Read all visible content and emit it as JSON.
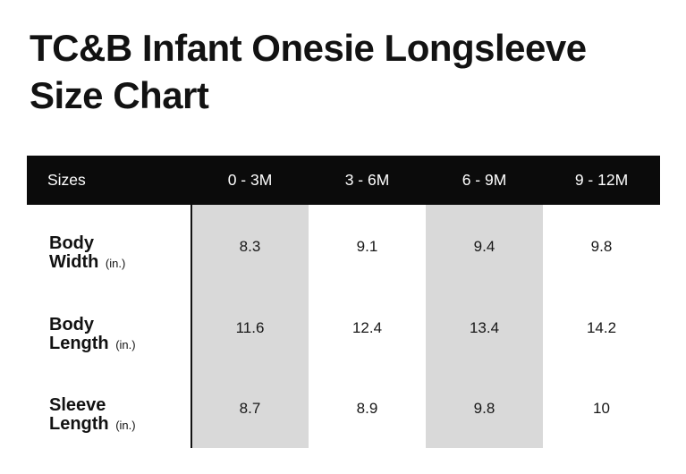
{
  "title": "TC&B Infant Onesie Longsleeve Size Chart",
  "table": {
    "header": {
      "label": "Sizes",
      "columns": [
        "0 - 3M",
        "3 - 6M",
        "6 - 9M",
        "9 - 12M"
      ]
    },
    "rows": [
      {
        "label_line1": "Body",
        "label_line2": "Width",
        "unit": "(in.)",
        "values": [
          "8.3",
          "9.1",
          "9.4",
          "9.8"
        ]
      },
      {
        "label_line1": "Body",
        "label_line2": "Length",
        "unit": "(in.)",
        "values": [
          "11.6",
          "12.4",
          "13.4",
          "14.2"
        ]
      },
      {
        "label_line1": "Sleeve",
        "label_line2": "Length",
        "unit": "(in.)",
        "values": [
          "8.7",
          "8.9",
          "9.8",
          "10"
        ]
      }
    ],
    "highlighted_columns": [
      "0 - 3M",
      "6 - 9M"
    ]
  },
  "colors": {
    "header_bg": "#0b0b0b",
    "header_text": "#ffffff",
    "highlight_column_bg": "#d9d9d9",
    "divider_line": "#131313",
    "text": "#121212",
    "background": "#ffffff"
  },
  "chart_data": {
    "type": "table",
    "title": "TC&B Infant Onesie Longsleeve Size Chart",
    "columns": [
      "Sizes",
      "0 - 3M",
      "3 - 6M",
      "6 - 9M",
      "9 - 12M"
    ],
    "rows": [
      [
        "Body Width (in.)",
        8.3,
        9.1,
        9.4,
        9.8
      ],
      [
        "Body Length (in.)",
        11.6,
        12.4,
        13.4,
        14.2
      ],
      [
        "Sleeve Length (in.)",
        8.7,
        8.9,
        9.8,
        10
      ]
    ],
    "units": "inches",
    "highlighted_columns": [
      "0 - 3M",
      "6 - 9M"
    ],
    "layout": "header row black with white text; 1st and 3rd data columns shaded light gray"
  }
}
